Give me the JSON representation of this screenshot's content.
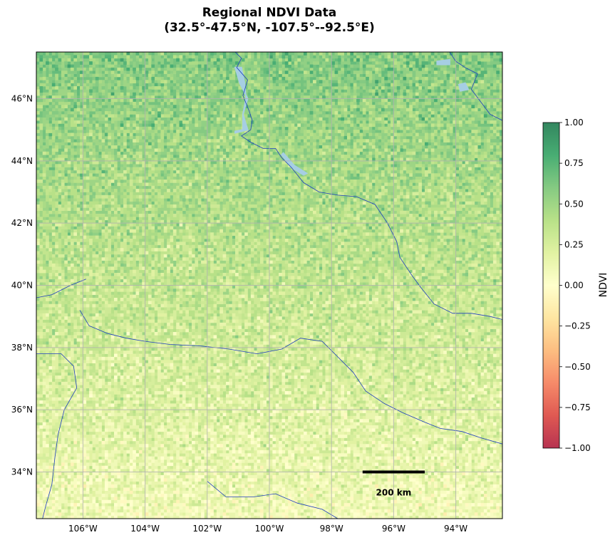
{
  "title": {
    "line1": "Regional NDVI Data",
    "line2": "(32.5°-47.5°N, -107.5°--92.5°E)"
  },
  "map": {
    "extent": {
      "lon_min": -107.5,
      "lon_max": -92.5,
      "lat_min": 32.5,
      "lat_max": 47.5
    },
    "lon_ticks": [
      {
        "value": -106,
        "label": "106°W"
      },
      {
        "value": -104,
        "label": "104°W"
      },
      {
        "value": -102,
        "label": "102°W"
      },
      {
        "value": -100,
        "label": "100°W"
      },
      {
        "value": -98,
        "label": "98°W"
      },
      {
        "value": -96,
        "label": "96°W"
      },
      {
        "value": -94,
        "label": "94°W"
      }
    ],
    "lat_ticks": [
      {
        "value": 34,
        "label": "34°N"
      },
      {
        "value": 36,
        "label": "36°N"
      },
      {
        "value": 38,
        "label": "38°N"
      },
      {
        "value": 40,
        "label": "40°N"
      },
      {
        "value": 42,
        "label": "42°N"
      },
      {
        "value": 44,
        "label": "44°N"
      },
      {
        "value": 46,
        "label": "46°N"
      }
    ],
    "gridlines": true,
    "grid_resolution_deg": 0.1,
    "ndvi_trend": "higher NDVI in the north (about 0.6), decreasing to near 0.1 in the south",
    "scale_bar": {
      "label": "200 km",
      "lon_start": -97.0,
      "lon_end": -95.0,
      "lat": 34.0
    },
    "rivers": [
      [
        [
          -101.1,
          47.5
        ],
        [
          -100.9,
          47.3
        ],
        [
          -101.05,
          47.0
        ],
        [
          -100.7,
          46.6
        ],
        [
          -100.85,
          46.1
        ],
        [
          -100.65,
          45.6
        ],
        [
          -100.55,
          45.3
        ],
        [
          -100.6,
          45.0
        ],
        [
          -100.9,
          44.8
        ],
        [
          -100.6,
          44.6
        ],
        [
          -100.2,
          44.4
        ],
        [
          -99.8,
          44.4
        ],
        [
          -99.6,
          44.1
        ],
        [
          -99.3,
          43.8
        ],
        [
          -98.9,
          43.3
        ],
        [
          -98.4,
          43.0
        ],
        [
          -97.8,
          42.9
        ],
        [
          -97.2,
          42.85
        ],
        [
          -96.6,
          42.6
        ],
        [
          -96.2,
          42.0
        ],
        [
          -95.9,
          41.4
        ],
        [
          -95.8,
          40.9
        ],
        [
          -95.4,
          40.3
        ],
        [
          -95.1,
          39.9
        ],
        [
          -94.7,
          39.4
        ],
        [
          -94.1,
          39.1
        ],
        [
          -93.5,
          39.1
        ],
        [
          -92.9,
          39.0
        ],
        [
          -92.5,
          38.9
        ]
      ],
      [
        [
          -94.2,
          47.5
        ],
        [
          -94.0,
          47.2
        ],
        [
          -93.7,
          47.0
        ],
        [
          -93.3,
          46.8
        ],
        [
          -93.5,
          46.3
        ],
        [
          -93.2,
          45.9
        ],
        [
          -92.9,
          45.5
        ],
        [
          -92.5,
          45.3
        ]
      ],
      [
        [
          -107.5,
          39.6
        ],
        [
          -107.0,
          39.7
        ],
        [
          -106.4,
          40.0
        ],
        [
          -105.9,
          40.2
        ]
      ],
      [
        [
          -106.1,
          39.2
        ],
        [
          -105.8,
          38.7
        ],
        [
          -105.2,
          38.45
        ],
        [
          -104.6,
          38.3
        ],
        [
          -104.0,
          38.2
        ],
        [
          -103.2,
          38.1
        ],
        [
          -102.2,
          38.05
        ],
        [
          -101.3,
          37.95
        ],
        [
          -100.4,
          37.8
        ],
        [
          -99.6,
          37.95
        ],
        [
          -99.0,
          38.3
        ],
        [
          -98.3,
          38.2
        ],
        [
          -97.8,
          37.7
        ],
        [
          -97.3,
          37.2
        ],
        [
          -96.9,
          36.6
        ],
        [
          -96.3,
          36.2
        ],
        [
          -95.7,
          35.9
        ],
        [
          -95.0,
          35.6
        ],
        [
          -94.5,
          35.4
        ],
        [
          -93.8,
          35.3
        ],
        [
          -93.2,
          35.1
        ],
        [
          -92.5,
          34.9
        ]
      ],
      [
        [
          -107.5,
          37.8
        ],
        [
          -106.7,
          37.8
        ],
        [
          -106.3,
          37.4
        ],
        [
          -106.2,
          36.7
        ],
        [
          -106.6,
          36.0
        ],
        [
          -106.8,
          35.2
        ],
        [
          -106.9,
          34.5
        ],
        [
          -107.0,
          33.6
        ],
        [
          -107.2,
          32.9
        ],
        [
          -107.3,
          32.5
        ]
      ],
      [
        [
          -102.0,
          33.7
        ],
        [
          -101.4,
          33.2
        ],
        [
          -100.5,
          33.2
        ],
        [
          -99.8,
          33.3
        ],
        [
          -99.1,
          33.0
        ],
        [
          -98.3,
          32.8
        ],
        [
          -97.8,
          32.5
        ]
      ]
    ],
    "lakes": [
      [
        [
          -101.1,
          44.9
        ],
        [
          -100.7,
          45.0
        ],
        [
          -100.85,
          45.5
        ],
        [
          -100.7,
          46.0
        ],
        [
          -100.95,
          46.5
        ],
        [
          -101.1,
          47.0
        ],
        [
          -100.9,
          47.0
        ],
        [
          -100.8,
          46.5
        ],
        [
          -100.75,
          46.0
        ],
        [
          -100.85,
          45.5
        ],
        [
          -100.85,
          45.0
        ],
        [
          -101.1,
          44.95
        ]
      ],
      [
        [
          -99.6,
          44.2
        ],
        [
          -99.3,
          43.8
        ],
        [
          -98.9,
          43.55
        ],
        [
          -98.8,
          43.6
        ],
        [
          -99.2,
          43.85
        ],
        [
          -99.55,
          44.25
        ]
      ],
      [
        [
          -94.6,
          47.2
        ],
        [
          -94.2,
          47.25
        ],
        [
          -94.2,
          47.1
        ],
        [
          -94.6,
          47.1
        ]
      ],
      [
        [
          -93.9,
          46.45
        ],
        [
          -93.7,
          46.5
        ],
        [
          -93.6,
          46.3
        ],
        [
          -93.85,
          46.25
        ]
      ]
    ]
  },
  "colorbar": {
    "label": "NDVI",
    "vmin": -1.0,
    "vmax": 1.0,
    "ticks": [
      {
        "value": 1.0,
        "label": "1.00"
      },
      {
        "value": 0.75,
        "label": "0.75"
      },
      {
        "value": 0.5,
        "label": "0.50"
      },
      {
        "value": 0.25,
        "label": "0.25"
      },
      {
        "value": 0.0,
        "label": "0.00"
      },
      {
        "value": -0.25,
        "label": "−0.25"
      },
      {
        "value": -0.5,
        "label": "−0.50"
      },
      {
        "value": -0.75,
        "label": "−0.75"
      },
      {
        "value": -1.0,
        "label": "−1.00"
      }
    ],
    "colormap": "RdYlGn",
    "stops": [
      "#a50026",
      "#d73027",
      "#f46d43",
      "#fdae61",
      "#fee08b",
      "#ffffbf",
      "#d9ef8b",
      "#a6d96a",
      "#66bd63",
      "#1a9850",
      "#006837"
    ],
    "alpha": 0.8
  },
  "colors": {
    "river": "#1f3fbf",
    "lake": "#a6cee3",
    "grid": "#b0b0b0"
  }
}
